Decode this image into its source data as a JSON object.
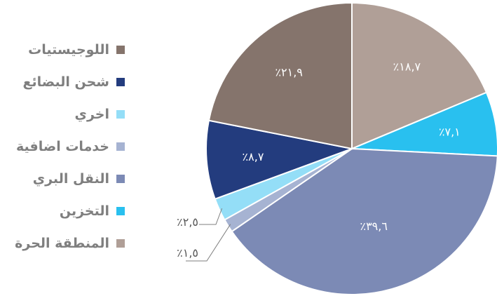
{
  "chart_data": {
    "type": "pie",
    "start_angle_deg": 0,
    "direction": "clockwise",
    "slices": [
      {
        "name": "المنطقة الحرة",
        "value": 18.7,
        "label": "٪١٨,٧",
        "color": "#b09f97",
        "label_placement": "inside"
      },
      {
        "name": "التخزين",
        "value": 7.1,
        "label": "٪٧,١",
        "color": "#29c0ef",
        "label_placement": "inside"
      },
      {
        "name": "النقل البري",
        "value": 39.6,
        "label": "٪٣٩,٦",
        "color": "#7c8ab5",
        "label_placement": "inside"
      },
      {
        "name": "خدمات اضافية",
        "value": 1.5,
        "label": "٪١,٥",
        "color": "#a6b3d2",
        "label_placement": "outside"
      },
      {
        "name": "اخري",
        "value": 2.5,
        "label": "٪٢,٥",
        "color": "#94def7",
        "label_placement": "outside"
      },
      {
        "name": "شحن البضائع",
        "value": 8.7,
        "label": "٪٨,٧",
        "color": "#233c7e",
        "label_placement": "inside"
      },
      {
        "name": "اللوجيستيات",
        "value": 21.9,
        "label": "٪٢١,٩",
        "color": "#85746c",
        "label_placement": "inside"
      }
    ],
    "legend_order": [
      "اللوجيستيات",
      "شحن البضائع",
      "اخري",
      "خدمات اضافية",
      "النقل البري",
      "التخزين",
      "المنطقة الحرة"
    ],
    "legend_placement": "left"
  }
}
